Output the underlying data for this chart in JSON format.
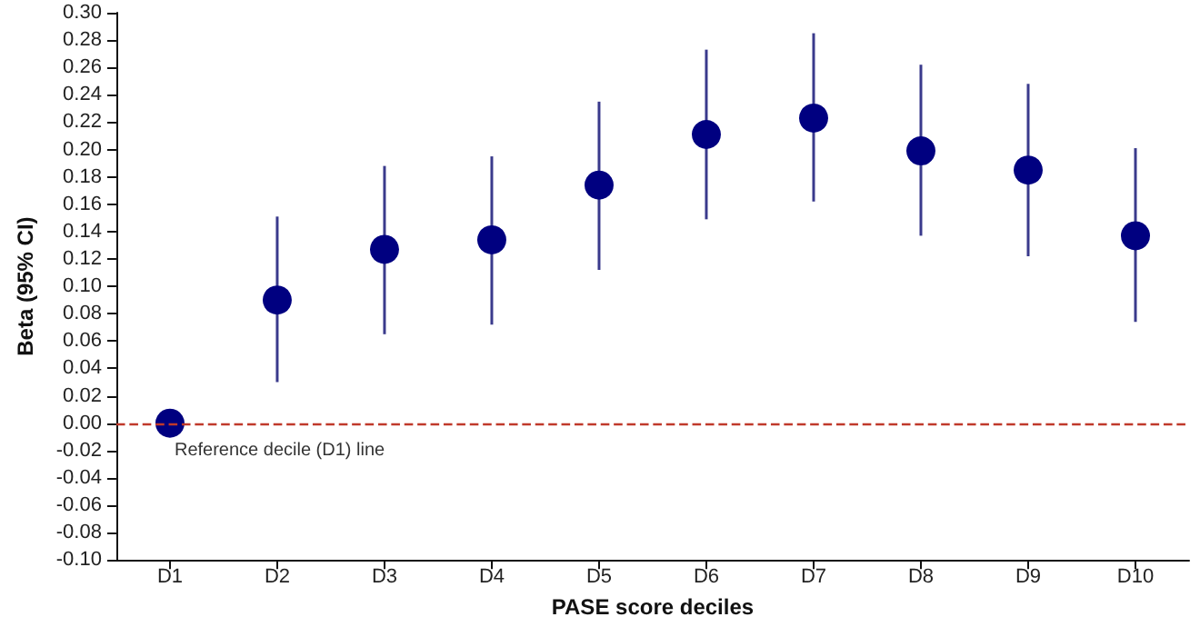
{
  "chart_data": {
    "type": "scatter",
    "xlabel": "PASE score deciles",
    "ylabel": "Beta (95% CI)",
    "categories": [
      "D1",
      "D2",
      "D3",
      "D4",
      "D5",
      "D6",
      "D7",
      "D8",
      "D9",
      "D10"
    ],
    "values": [
      0,
      0.09,
      0.127,
      0.134,
      0.174,
      0.211,
      0.223,
      0.199,
      0.185,
      0.137
    ],
    "errors": [
      null,
      [
        0.03,
        0.151
      ],
      [
        0.065,
        0.188
      ],
      [
        0.072,
        0.195
      ],
      [
        0.112,
        0.235
      ],
      [
        0.149,
        0.273
      ],
      [
        0.162,
        0.285
      ],
      [
        0.137,
        0.262
      ],
      [
        0.122,
        0.248
      ],
      [
        0.074,
        0.201
      ]
    ],
    "color": "#000080",
    "marker": "circle",
    "grid": false,
    "ylim": [
      -0.1,
      0.3
    ],
    "yticks": [
      {
        "value": -0.1,
        "label": "-0.10"
      },
      {
        "value": -0.08,
        "label": "-0.08"
      },
      {
        "value": -0.06,
        "label": "-0.06"
      },
      {
        "value": -0.04,
        "label": "-0.04"
      },
      {
        "value": -0.02,
        "label": "-0.02"
      },
      {
        "value": 0,
        "label": "0.00"
      },
      {
        "value": 0.02,
        "label": "0.02"
      },
      {
        "value": 0.04,
        "label": "0.04"
      },
      {
        "value": 0.06,
        "label": "0.06"
      },
      {
        "value": 0.08,
        "label": "0.08"
      },
      {
        "value": 0.1,
        "label": "0.10"
      },
      {
        "value": 0.12,
        "label": "0.12"
      },
      {
        "value": 0.14,
        "label": "0.14"
      },
      {
        "value": 0.16,
        "label": "0.16"
      },
      {
        "value": 0.18,
        "label": "0.18"
      },
      {
        "value": 0.2,
        "label": "0.20"
      },
      {
        "value": 0.22,
        "label": "0.22"
      },
      {
        "value": 0.24,
        "label": "0.24"
      },
      {
        "value": 0.26,
        "label": "0.26"
      },
      {
        "value": 0.28,
        "label": "0.28"
      },
      {
        "value": 0.3,
        "label": "0.30"
      }
    ],
    "ref_lines": [
      {
        "axis": "y",
        "value": 0,
        "label": "Reference decile (D1) line",
        "color": "#c0392b",
        "line_style": "dashed"
      }
    ]
  }
}
